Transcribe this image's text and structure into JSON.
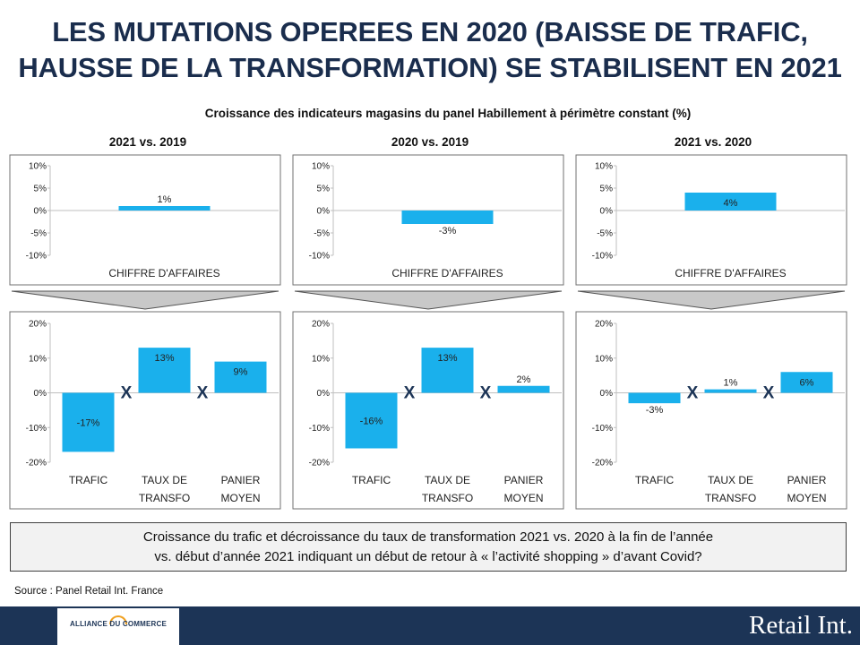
{
  "page": {
    "title_line1": "LES MUTATIONS OPEREES EN 2020 (BAISSE DE TRAFIC,",
    "title_line2": "HAUSSE DE LA TRANSFORMATION) SE STABILISENT EN 2021",
    "subtitle": "Croissance des indicateurs magasins du panel Habillement à périmètre constant (%)",
    "columns": [
      "2021 vs. 2019",
      "2020 vs. 2019",
      "2021 vs. 2020"
    ],
    "conclusion_line1": "Croissance du trafic et décroissance du taux de transformation 2021 vs. 2020 à la fin de l’année",
    "conclusion_line2": "vs. début d’année 2021 indiquant un début de retour à « l’activité shopping » d’avant Covid?",
    "source": "Source : Panel Retail Int. France",
    "multiplier_symbol": "X",
    "logo_text": "ALLIANCE DU COMMERCE",
    "brand": "Retail Int.",
    "colors": {
      "bar": "#1ab0ec",
      "title": "#1a2d4d",
      "footer": "#1c3456",
      "arrow": "#c8c8c8"
    }
  },
  "chart_data": [
    {
      "type": "bar",
      "title": "2021 vs. 2019",
      "categories": [
        "CHIFFRE D'AFFAIRES"
      ],
      "values": [
        1
      ],
      "labels": [
        "1%"
      ],
      "ylim": [
        -10,
        10
      ],
      "yticks": [
        "10%",
        "5%",
        "0%",
        "-5%",
        "-10%"
      ],
      "ytick_values": [
        10,
        5,
        0,
        -5,
        -10
      ]
    },
    {
      "type": "bar",
      "title": "2020 vs. 2019",
      "categories": [
        "CHIFFRE D'AFFAIRES"
      ],
      "values": [
        -3
      ],
      "labels": [
        "-3%"
      ],
      "ylim": [
        -10,
        10
      ],
      "yticks": [
        "10%",
        "5%",
        "0%",
        "-5%",
        "-10%"
      ],
      "ytick_values": [
        10,
        5,
        0,
        -5,
        -10
      ]
    },
    {
      "type": "bar",
      "title": "2021 vs. 2020",
      "categories": [
        "CHIFFRE D'AFFAIRES"
      ],
      "values": [
        4
      ],
      "labels": [
        "4%"
      ],
      "ylim": [
        -10,
        10
      ],
      "yticks": [
        "10%",
        "5%",
        "0%",
        "-5%",
        "-10%"
      ],
      "ytick_values": [
        10,
        5,
        0,
        -5,
        -10
      ]
    },
    {
      "type": "bar",
      "title": "2021 vs. 2019",
      "categories": [
        "TRAFIC",
        "TAUX DE TRANSFO",
        "PANIER MOYEN"
      ],
      "category_lines": [
        [
          "TRAFIC"
        ],
        [
          "TAUX DE",
          "TRANSFO"
        ],
        [
          "PANIER",
          "MOYEN"
        ]
      ],
      "values": [
        -17,
        13,
        9
      ],
      "labels": [
        "-17%",
        "13%",
        "9%"
      ],
      "ylim": [
        -20,
        20
      ],
      "yticks": [
        "20%",
        "10%",
        "0%",
        "-10%",
        "-20%"
      ],
      "ytick_values": [
        20,
        10,
        0,
        -10,
        -20
      ]
    },
    {
      "type": "bar",
      "title": "2020 vs. 2019",
      "categories": [
        "TRAFIC",
        "TAUX DE TRANSFO",
        "PANIER MOYEN"
      ],
      "category_lines": [
        [
          "TRAFIC"
        ],
        [
          "TAUX DE",
          "TRANSFO"
        ],
        [
          "PANIER",
          "MOYEN"
        ]
      ],
      "values": [
        -16,
        13,
        2
      ],
      "labels": [
        "-16%",
        "13%",
        "2%"
      ],
      "ylim": [
        -20,
        20
      ],
      "yticks": [
        "20%",
        "10%",
        "0%",
        "-10%",
        "-20%"
      ],
      "ytick_values": [
        20,
        10,
        0,
        -10,
        -20
      ]
    },
    {
      "type": "bar",
      "title": "2021 vs. 2020",
      "categories": [
        "TRAFIC",
        "TAUX DE TRANSFO",
        "PANIER MOYEN"
      ],
      "category_lines": [
        [
          "TRAFIC"
        ],
        [
          "TAUX DE",
          "TRANSFO"
        ],
        [
          "PANIER",
          "MOYEN"
        ]
      ],
      "values": [
        -3,
        1,
        6
      ],
      "labels": [
        "-3%",
        "1%",
        "6%"
      ],
      "ylim": [
        -20,
        20
      ],
      "yticks": [
        "20%",
        "10%",
        "0%",
        "-10%",
        "-20%"
      ],
      "ytick_values": [
        20,
        10,
        0,
        -10,
        -20
      ]
    }
  ]
}
